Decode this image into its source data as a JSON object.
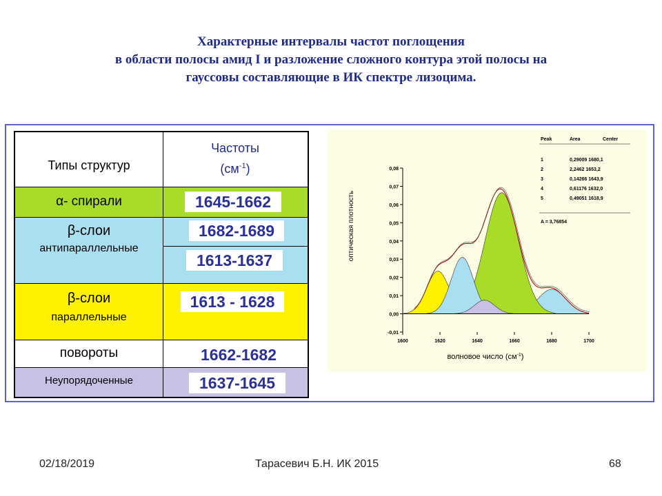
{
  "title": {
    "line1": "Характерные интервалы частот поглощения",
    "line2": "в области полосы амид I и разложение сложного контура этой полосы на",
    "line3": "гауссовы составляющие в ИК спектре лизоцима."
  },
  "table": {
    "header_types": "Типы структур",
    "header_freq_line1": "Частоты",
    "header_freq_unit": "(см",
    "header_freq_sup": "-1",
    "header_freq_close": ")",
    "rows": {
      "alpha_label": "α- спирали",
      "alpha_freq": "1645-1662",
      "beta_anti_label1": "β-слои",
      "beta_anti_label2": "антипараллельные",
      "beta_anti_freq1": "1682-1689",
      "beta_anti_freq2": "1613-1637",
      "beta_par_label1": "β-слои",
      "beta_par_label2": "параллельные",
      "beta_par_freq": "1613 -  1628",
      "turns_label": "повороты",
      "turns_freq": "1662-1682",
      "disordered_label": "Неупорядоченные",
      "disordered_freq": "1637-1645"
    },
    "colors": {
      "alpha": "#a8dc28",
      "beta_anti": "#a9dff0",
      "beta_par": "#fff200",
      "turns": "#ffffff",
      "disordered": "#c9c0e6"
    }
  },
  "chart_data": {
    "type": "area",
    "ylabel": "оптическая плотность",
    "xlabel": "волновое число (см",
    "xlabel_sup": "-1",
    "xlabel_close": ")",
    "x_ticks": [
      "1600",
      "1620",
      "1640",
      "1660",
      "1680",
      "1700"
    ],
    "y_ticks": [
      "-0,01",
      "0,00",
      "0,01",
      "0,02",
      "0,03",
      "0,04",
      "0,05",
      "0,06",
      "0,07",
      "0,08"
    ],
    "xlim": [
      1600,
      1700
    ],
    "ylim": [
      -0.01,
      0.08
    ],
    "legend_headers": [
      "Peak",
      "Area",
      "Center"
    ],
    "peaks": [
      {
        "peak": "1",
        "area": "0,29009",
        "center": "1680,1",
        "center_val": 1680.1,
        "amp": 0.0135,
        "sigma": 7.5,
        "color": "#a9dff0"
      },
      {
        "peak": "2",
        "area": "2,2462",
        "center": "1653,2",
        "center_val": 1653.2,
        "amp": 0.0665,
        "sigma": 9.0,
        "color": "#a8dc28"
      },
      {
        "peak": "3",
        "area": "0,14266",
        "center": "1643,9",
        "center_val": 1643.9,
        "amp": 0.0075,
        "sigma": 5.5,
        "color": "#c9c0e6"
      },
      {
        "peak": "4",
        "area": "0,61176",
        "center": "1632,0",
        "center_val": 1632.0,
        "amp": 0.031,
        "sigma": 6.0,
        "color": "#a9dff0"
      },
      {
        "peak": "5",
        "area": "0,49051",
        "center": "1618,9",
        "center_val": 1618.9,
        "amp": 0.0235,
        "sigma": 6.0,
        "color": "#fff200"
      }
    ],
    "total_area": "A = 3,76854"
  },
  "footer": {
    "date": "02/18/2019",
    "author": "Тарасевич Б.Н.  ИК 2015",
    "page": "68"
  }
}
